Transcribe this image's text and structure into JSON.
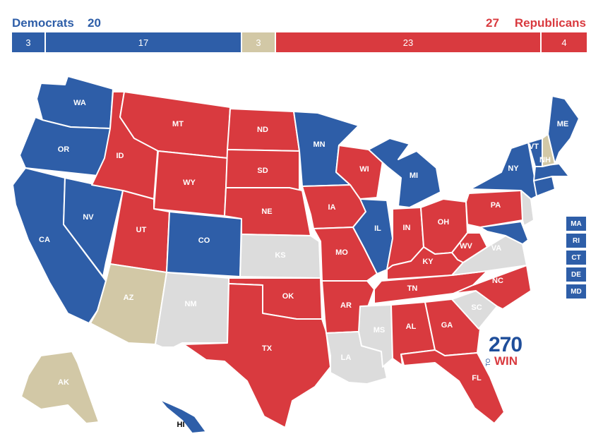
{
  "header": {
    "dem_label": "Democrats",
    "dem_total": "20",
    "rep_total": "27",
    "rep_label": "Republicans"
  },
  "bar": {
    "segments": [
      {
        "category": "safe-dem",
        "value": "3"
      },
      {
        "category": "lean-dem",
        "value": "17"
      },
      {
        "category": "tossup",
        "value": "3"
      },
      {
        "category": "lean-rep",
        "value": "23"
      },
      {
        "category": "safe-rep",
        "value": "4"
      }
    ]
  },
  "colors": {
    "dem": "#2e5ea8",
    "rep": "#d93a3f",
    "tossup": "#d2c8a6",
    "no_race": "#dcdcdc"
  },
  "states": {
    "WA": "WA",
    "OR": "OR",
    "CA": "CA",
    "NV": "NV",
    "ID": "ID",
    "MT": "MT",
    "WY": "WY",
    "UT": "UT",
    "AZ": "AZ",
    "CO": "CO",
    "NM": "NM",
    "ND": "ND",
    "SD": "SD",
    "NE": "NE",
    "KS": "KS",
    "OK": "OK",
    "TX": "TX",
    "MN": "MN",
    "IA": "IA",
    "MO": "MO",
    "AR": "AR",
    "LA": "LA",
    "WI": "WI",
    "IL": "IL",
    "MI": "MI",
    "IN": "IN",
    "OH": "OH",
    "KY": "KY",
    "TN": "TN",
    "MS": "MS",
    "AL": "AL",
    "GA": "GA",
    "FL": "FL",
    "SC": "SC",
    "NC": "NC",
    "VA": "VA",
    "WV": "WV",
    "PA": "PA",
    "NY": "NY",
    "VT": "VT",
    "NH": "NH",
    "ME": "ME",
    "AK": "AK",
    "HI": "HI"
  },
  "small_states": [
    "MA",
    "RI",
    "CT",
    "DE",
    "MD"
  ],
  "logo": {
    "number": "270",
    "to": "TO",
    "win": "WIN"
  }
}
